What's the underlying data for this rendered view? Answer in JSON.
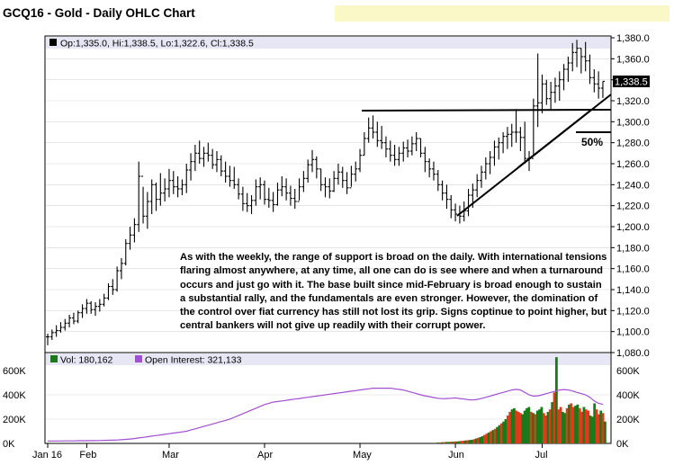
{
  "title": "GCQ16 - Gold - Daily OHLC Chart",
  "ohlc_legend": "Op:1,335.0, Hi:1,338.5, Lo:1,322.6, Cl:1,338.5",
  "last_price_label": "1,338.5",
  "fib_label": "50%",
  "volume_legend": "Vol: 180,162",
  "oi_legend": "Open Interest: 321,133",
  "commentary": "As with the weekly, the range of support is broad on the daily.  With international tensions flaring almost anywhere, at any time, all one can do is see where and when a turnaround occurs and just go with it.  The base built since mid-February is broad enough to sustain a substantial rally, and the fundamentals are even stronger.  However, the domination of the control over fiat currency has still not lost its grip.  Signs coptinue to point higher, but central bankers will not give up readily with their corrupt power.",
  "colors": {
    "price_bars": "#000000",
    "volume_up": "#1a7a1a",
    "volume_down": "#e03a1a",
    "open_interest": "#a050d0",
    "legend_bar_bg": "#e6e6f5",
    "highlight": "#fbf8c8"
  },
  "chart_data": [
    {
      "type": "ohlc",
      "title": "GCQ16 - Gold - Daily OHLC Chart",
      "x_tick_labels": [
        "Jan 16",
        "Feb",
        "Mar",
        "Apr",
        "May",
        "Jun",
        "Jul"
      ],
      "y_tick_labels": [
        "1,380.0",
        "1,360.0",
        "1,340.0",
        "1,320.0",
        "1,300.0",
        "1,280.0",
        "1,260.0",
        "1,240.0",
        "1,220.0",
        "1,200.0",
        "1,180.0",
        "1,160.0",
        "1,140.0",
        "1,120.0",
        "1,100.0",
        "1,080.0"
      ],
      "ylim": [
        1080,
        1380
      ],
      "y_side": "right",
      "grid": true,
      "bars": [
        {
          "h": 1098,
          "l": 1087,
          "c": 1095
        },
        {
          "h": 1102,
          "l": 1092,
          "c": 1099
        },
        {
          "h": 1106,
          "l": 1095,
          "c": 1101
        },
        {
          "h": 1109,
          "l": 1099,
          "c": 1104
        },
        {
          "h": 1112,
          "l": 1101,
          "c": 1108
        },
        {
          "h": 1116,
          "l": 1104,
          "c": 1113
        },
        {
          "h": 1118,
          "l": 1107,
          "c": 1110
        },
        {
          "h": 1120,
          "l": 1108,
          "c": 1118
        },
        {
          "h": 1126,
          "l": 1113,
          "c": 1122
        },
        {
          "h": 1131,
          "l": 1117,
          "c": 1127
        },
        {
          "h": 1129,
          "l": 1117,
          "c": 1121
        },
        {
          "h": 1128,
          "l": 1115,
          "c": 1124
        },
        {
          "h": 1131,
          "l": 1119,
          "c": 1126
        },
        {
          "h": 1136,
          "l": 1124,
          "c": 1132
        },
        {
          "h": 1146,
          "l": 1130,
          "c": 1143
        },
        {
          "h": 1150,
          "l": 1135,
          "c": 1140
        },
        {
          "h": 1162,
          "l": 1138,
          "c": 1158
        },
        {
          "h": 1170,
          "l": 1150,
          "c": 1165
        },
        {
          "h": 1188,
          "l": 1163,
          "c": 1184
        },
        {
          "h": 1200,
          "l": 1178,
          "c": 1192
        },
        {
          "h": 1208,
          "l": 1185,
          "c": 1202
        },
        {
          "h": 1262,
          "l": 1195,
          "c": 1248
        },
        {
          "h": 1238,
          "l": 1203,
          "c": 1210
        },
        {
          "h": 1233,
          "l": 1198,
          "c": 1224
        },
        {
          "h": 1245,
          "l": 1212,
          "c": 1240
        },
        {
          "h": 1242,
          "l": 1215,
          "c": 1226
        },
        {
          "h": 1251,
          "l": 1220,
          "c": 1232
        },
        {
          "h": 1246,
          "l": 1224,
          "c": 1236
        },
        {
          "h": 1255,
          "l": 1228,
          "c": 1244
        },
        {
          "h": 1253,
          "l": 1231,
          "c": 1238
        },
        {
          "h": 1248,
          "l": 1228,
          "c": 1236
        },
        {
          "h": 1245,
          "l": 1230,
          "c": 1240
        },
        {
          "h": 1260,
          "l": 1232,
          "c": 1254
        },
        {
          "h": 1270,
          "l": 1244,
          "c": 1262
        },
        {
          "h": 1278,
          "l": 1253,
          "c": 1270
        },
        {
          "h": 1282,
          "l": 1260,
          "c": 1265
        },
        {
          "h": 1276,
          "l": 1257,
          "c": 1270
        },
        {
          "h": 1280,
          "l": 1262,
          "c": 1268
        },
        {
          "h": 1274,
          "l": 1255,
          "c": 1259
        },
        {
          "h": 1272,
          "l": 1252,
          "c": 1264
        },
        {
          "h": 1268,
          "l": 1248,
          "c": 1253
        },
        {
          "h": 1262,
          "l": 1242,
          "c": 1248
        },
        {
          "h": 1258,
          "l": 1238,
          "c": 1244
        },
        {
          "h": 1257,
          "l": 1236,
          "c": 1240
        },
        {
          "h": 1246,
          "l": 1226,
          "c": 1231
        },
        {
          "h": 1238,
          "l": 1215,
          "c": 1222
        },
        {
          "h": 1232,
          "l": 1214,
          "c": 1220
        },
        {
          "h": 1230,
          "l": 1212,
          "c": 1225
        },
        {
          "h": 1245,
          "l": 1220,
          "c": 1238
        },
        {
          "h": 1247,
          "l": 1226,
          "c": 1240
        },
        {
          "h": 1244,
          "l": 1221,
          "c": 1226
        },
        {
          "h": 1237,
          "l": 1218,
          "c": 1225
        },
        {
          "h": 1233,
          "l": 1214,
          "c": 1221
        },
        {
          "h": 1242,
          "l": 1220,
          "c": 1235
        },
        {
          "h": 1248,
          "l": 1229,
          "c": 1238
        },
        {
          "h": 1246,
          "l": 1225,
          "c": 1232
        },
        {
          "h": 1239,
          "l": 1220,
          "c": 1227
        },
        {
          "h": 1236,
          "l": 1217,
          "c": 1224
        },
        {
          "h": 1246,
          "l": 1225,
          "c": 1238
        },
        {
          "h": 1253,
          "l": 1233,
          "c": 1246
        },
        {
          "h": 1264,
          "l": 1242,
          "c": 1259
        },
        {
          "h": 1273,
          "l": 1252,
          "c": 1264
        },
        {
          "h": 1267,
          "l": 1246,
          "c": 1255
        },
        {
          "h": 1255,
          "l": 1234,
          "c": 1240
        },
        {
          "h": 1247,
          "l": 1228,
          "c": 1238
        },
        {
          "h": 1246,
          "l": 1227,
          "c": 1234
        },
        {
          "h": 1253,
          "l": 1233,
          "c": 1246
        },
        {
          "h": 1260,
          "l": 1240,
          "c": 1252
        },
        {
          "h": 1257,
          "l": 1237,
          "c": 1244
        },
        {
          "h": 1252,
          "l": 1231,
          "c": 1237
        },
        {
          "h": 1258,
          "l": 1238,
          "c": 1250
        },
        {
          "h": 1262,
          "l": 1243,
          "c": 1255
        },
        {
          "h": 1274,
          "l": 1252,
          "c": 1268
        },
        {
          "h": 1290,
          "l": 1268,
          "c": 1284
        },
        {
          "h": 1304,
          "l": 1280,
          "c": 1294
        },
        {
          "h": 1306,
          "l": 1284,
          "c": 1290
        },
        {
          "h": 1300,
          "l": 1276,
          "c": 1282
        },
        {
          "h": 1296,
          "l": 1274,
          "c": 1280
        },
        {
          "h": 1286,
          "l": 1266,
          "c": 1274
        },
        {
          "h": 1282,
          "l": 1262,
          "c": 1268
        },
        {
          "h": 1278,
          "l": 1258,
          "c": 1264
        },
        {
          "h": 1276,
          "l": 1258,
          "c": 1270
        },
        {
          "h": 1281,
          "l": 1262,
          "c": 1275
        },
        {
          "h": 1283,
          "l": 1266,
          "c": 1272
        },
        {
          "h": 1286,
          "l": 1268,
          "c": 1279
        },
        {
          "h": 1290,
          "l": 1272,
          "c": 1284
        },
        {
          "h": 1284,
          "l": 1266,
          "c": 1270
        },
        {
          "h": 1276,
          "l": 1252,
          "c": 1262
        },
        {
          "h": 1265,
          "l": 1247,
          "c": 1255
        },
        {
          "h": 1262,
          "l": 1244,
          "c": 1250
        },
        {
          "h": 1254,
          "l": 1234,
          "c": 1240
        },
        {
          "h": 1244,
          "l": 1225,
          "c": 1232
        },
        {
          "h": 1240,
          "l": 1217,
          "c": 1226
        },
        {
          "h": 1230,
          "l": 1208,
          "c": 1216
        },
        {
          "h": 1222,
          "l": 1205,
          "c": 1212
        },
        {
          "h": 1220,
          "l": 1203,
          "c": 1210
        },
        {
          "h": 1224,
          "l": 1205,
          "c": 1215
        },
        {
          "h": 1236,
          "l": 1210,
          "c": 1230
        },
        {
          "h": 1241,
          "l": 1218,
          "c": 1235
        },
        {
          "h": 1250,
          "l": 1228,
          "c": 1244
        },
        {
          "h": 1258,
          "l": 1237,
          "c": 1252
        },
        {
          "h": 1266,
          "l": 1245,
          "c": 1260
        },
        {
          "h": 1272,
          "l": 1250,
          "c": 1266
        },
        {
          "h": 1282,
          "l": 1258,
          "c": 1276
        },
        {
          "h": 1285,
          "l": 1264,
          "c": 1280
        },
        {
          "h": 1290,
          "l": 1270,
          "c": 1286
        },
        {
          "h": 1295,
          "l": 1274,
          "c": 1288
        },
        {
          "h": 1298,
          "l": 1276,
          "c": 1290
        },
        {
          "h": 1312,
          "l": 1280,
          "c": 1290
        },
        {
          "h": 1295,
          "l": 1272,
          "c": 1285
        },
        {
          "h": 1300,
          "l": 1260,
          "c": 1265
        },
        {
          "h": 1272,
          "l": 1253,
          "c": 1265
        },
        {
          "h": 1322,
          "l": 1268,
          "c": 1315
        },
        {
          "h": 1365,
          "l": 1295,
          "c": 1318
        },
        {
          "h": 1345,
          "l": 1308,
          "c": 1336
        },
        {
          "h": 1340,
          "l": 1316,
          "c": 1322
        },
        {
          "h": 1338,
          "l": 1312,
          "c": 1328
        },
        {
          "h": 1342,
          "l": 1318,
          "c": 1334
        },
        {
          "h": 1348,
          "l": 1320,
          "c": 1340
        },
        {
          "h": 1355,
          "l": 1330,
          "c": 1350
        },
        {
          "h": 1362,
          "l": 1338,
          "c": 1356
        },
        {
          "h": 1375,
          "l": 1348,
          "c": 1366
        },
        {
          "h": 1378,
          "l": 1352,
          "c": 1370
        },
        {
          "h": 1370,
          "l": 1346,
          "c": 1362
        },
        {
          "h": 1376,
          "l": 1348,
          "c": 1358
        },
        {
          "h": 1364,
          "l": 1336,
          "c": 1342
        },
        {
          "h": 1350,
          "l": 1328,
          "c": 1336
        },
        {
          "h": 1348,
          "l": 1322,
          "c": 1332
        },
        {
          "h": 1338.5,
          "l": 1322.6,
          "c": 1338.5
        }
      ]
    },
    {
      "type": "bar",
      "title": "Volume / Open Interest",
      "y_tick_labels": [
        "600K",
        "400K",
        "200K",
        "0K"
      ],
      "ylim": [
        0,
        600000
      ],
      "volume_first_bar_index": 90,
      "volume": [
        8000,
        8000,
        10000,
        10000,
        12000,
        12000,
        14000,
        14000,
        16000,
        16000,
        18000,
        20000,
        22000,
        24000,
        26000,
        28000,
        30000,
        34000,
        40000,
        46000,
        52000,
        60000,
        70000,
        80000,
        90000,
        100000,
        110000,
        120000,
        135000,
        150000,
        165000,
        180000,
        200000,
        230000,
        260000,
        280000,
        290000,
        270000,
        260000,
        250000,
        240000,
        270000,
        290000,
        300000,
        260000,
        250000,
        240000,
        270000,
        280000,
        300000,
        250000,
        230000,
        260000,
        280000,
        340000,
        420000,
        710000,
        280000,
        300000,
        260000,
        250000,
        290000,
        320000,
        330000,
        300000,
        310000,
        320000,
        290000,
        260000,
        300000,
        280000,
        270000,
        230000,
        220000,
        330000,
        280000,
        240000,
        270000,
        250000,
        180162
      ],
      "volume_up": [
        true,
        false,
        true,
        false,
        true,
        true,
        false,
        true,
        false,
        true,
        true,
        false,
        false,
        true,
        false,
        true,
        true,
        false,
        true,
        false,
        true,
        true,
        false,
        false,
        true,
        false,
        true,
        false,
        true,
        true,
        false,
        true,
        true,
        false,
        false,
        true,
        true,
        false,
        false,
        false,
        true,
        true,
        true,
        true,
        false,
        true,
        false,
        true,
        true,
        true,
        false,
        false,
        true,
        false,
        true,
        false,
        true,
        false,
        false,
        true,
        true,
        false,
        true,
        false,
        false,
        true,
        true,
        false,
        false,
        true,
        false,
        false,
        true,
        true,
        true,
        false,
        false,
        true,
        false,
        true
      ],
      "open_interest": [
        20000,
        20000,
        20000,
        20000,
        21000,
        21000,
        21000,
        22000,
        22000,
        22000,
        23000,
        23000,
        24000,
        25000,
        26000,
        27000,
        28000,
        30000,
        33000,
        36000,
        40000,
        45000,
        50000,
        55000,
        60000,
        65000,
        70000,
        75000,
        80000,
        85000,
        90000,
        95000,
        100000,
        110000,
        120000,
        130000,
        140000,
        150000,
        160000,
        170000,
        180000,
        190000,
        200000,
        215000,
        230000,
        245000,
        260000,
        275000,
        290000,
        305000,
        320000,
        330000,
        340000,
        345000,
        350000,
        355000,
        360000,
        365000,
        370000,
        375000,
        380000,
        385000,
        390000,
        395000,
        400000,
        405000,
        410000,
        415000,
        420000,
        425000,
        430000,
        435000,
        440000,
        445000,
        450000,
        455000,
        455000,
        455000,
        455000,
        455000,
        450000,
        445000,
        440000,
        430000,
        420000,
        410000,
        400000,
        392000,
        385000,
        378000,
        372000,
        368000,
        370000,
        372000,
        375000,
        370000,
        365000,
        360000,
        358000,
        362000,
        370000,
        380000,
        390000,
        400000,
        410000,
        420000,
        430000,
        440000,
        445000,
        440000,
        420000,
        400000,
        390000,
        392000,
        400000,
        410000,
        420000,
        430000,
        440000,
        444000,
        440000,
        432000,
        420000,
        410000,
        400000,
        380000,
        350000,
        330000,
        321133
      ]
    }
  ]
}
